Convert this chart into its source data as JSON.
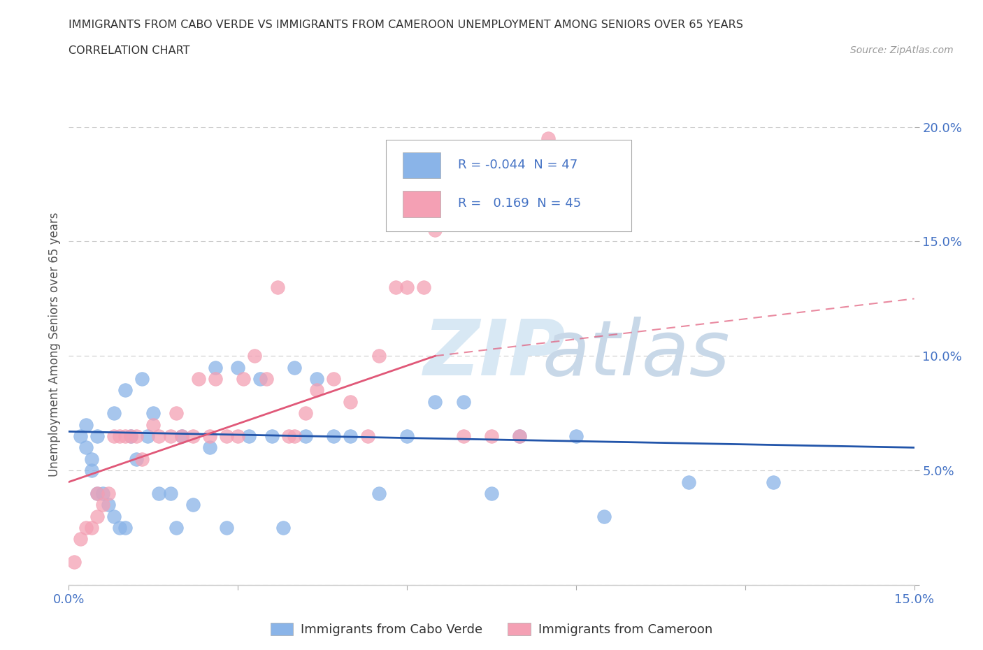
{
  "title_line1": "IMMIGRANTS FROM CABO VERDE VS IMMIGRANTS FROM CAMEROON UNEMPLOYMENT AMONG SENIORS OVER 65 YEARS",
  "title_line2": "CORRELATION CHART",
  "source_text": "Source: ZipAtlas.com",
  "ylabel": "Unemployment Among Seniors over 65 years",
  "xlim": [
    0.0,
    0.15
  ],
  "ylim": [
    0.0,
    0.21
  ],
  "xticks": [
    0.0,
    0.03,
    0.06,
    0.09,
    0.12,
    0.15
  ],
  "yticks": [
    0.0,
    0.05,
    0.1,
    0.15,
    0.2
  ],
  "cabo_verde_color": "#8ab4e8",
  "cameroon_color": "#f4a0b4",
  "cabo_verde_line_color": "#2255aa",
  "cameroon_line_color": "#e05878",
  "legend_r_cabo": "-0.044",
  "legend_n_cabo": "47",
  "legend_r_cam": "0.169",
  "legend_n_cam": "45",
  "cabo_verde_x": [
    0.002,
    0.003,
    0.003,
    0.004,
    0.004,
    0.005,
    0.005,
    0.006,
    0.007,
    0.008,
    0.008,
    0.009,
    0.01,
    0.01,
    0.011,
    0.012,
    0.013,
    0.014,
    0.015,
    0.016,
    0.018,
    0.019,
    0.02,
    0.022,
    0.025,
    0.026,
    0.028,
    0.03,
    0.032,
    0.034,
    0.036,
    0.038,
    0.04,
    0.042,
    0.044,
    0.047,
    0.05,
    0.055,
    0.06,
    0.065,
    0.07,
    0.075,
    0.08,
    0.09,
    0.095,
    0.11,
    0.125
  ],
  "cabo_verde_y": [
    0.065,
    0.07,
    0.06,
    0.055,
    0.05,
    0.065,
    0.04,
    0.04,
    0.035,
    0.03,
    0.075,
    0.025,
    0.085,
    0.025,
    0.065,
    0.055,
    0.09,
    0.065,
    0.075,
    0.04,
    0.04,
    0.025,
    0.065,
    0.035,
    0.06,
    0.095,
    0.025,
    0.095,
    0.065,
    0.09,
    0.065,
    0.025,
    0.095,
    0.065,
    0.09,
    0.065,
    0.065,
    0.04,
    0.065,
    0.08,
    0.08,
    0.04,
    0.065,
    0.065,
    0.03,
    0.045,
    0.045
  ],
  "cameroon_x": [
    0.001,
    0.002,
    0.003,
    0.004,
    0.005,
    0.005,
    0.006,
    0.007,
    0.008,
    0.009,
    0.01,
    0.011,
    0.012,
    0.013,
    0.015,
    0.016,
    0.018,
    0.019,
    0.02,
    0.022,
    0.023,
    0.025,
    0.026,
    0.028,
    0.03,
    0.031,
    0.033,
    0.035,
    0.037,
    0.039,
    0.04,
    0.042,
    0.044,
    0.047,
    0.05,
    0.053,
    0.055,
    0.058,
    0.06,
    0.063,
    0.065,
    0.07,
    0.075,
    0.08,
    0.085
  ],
  "cameroon_y": [
    0.01,
    0.02,
    0.025,
    0.025,
    0.03,
    0.04,
    0.035,
    0.04,
    0.065,
    0.065,
    0.065,
    0.065,
    0.065,
    0.055,
    0.07,
    0.065,
    0.065,
    0.075,
    0.065,
    0.065,
    0.09,
    0.065,
    0.09,
    0.065,
    0.065,
    0.09,
    0.1,
    0.09,
    0.13,
    0.065,
    0.065,
    0.075,
    0.085,
    0.09,
    0.08,
    0.065,
    0.1,
    0.13,
    0.13,
    0.13,
    0.155,
    0.065,
    0.065,
    0.065,
    0.195
  ],
  "cabo_trend": [
    0.0,
    0.15,
    0.067,
    0.06
  ],
  "cam_trend_solid": [
    0.0,
    0.065,
    0.045,
    0.1
  ],
  "cam_trend_dashed": [
    0.065,
    0.15,
    0.1,
    0.125
  ],
  "grid_color": "#cccccc",
  "bg_color": "#ffffff",
  "legend_text_color": "#4472c4",
  "tick_label_color": "#4472c4",
  "ylabel_color": "#555555",
  "title_color": "#333333",
  "source_color": "#999999",
  "watermark_zip_color": "#d8e8f4",
  "watermark_atlas_color": "#c8d8e8"
}
